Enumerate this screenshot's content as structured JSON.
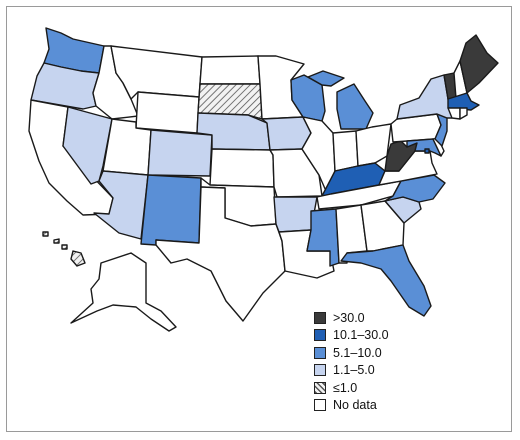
{
  "colors": {
    "ge30": "#3a3a3a",
    "c10_30": "#1f5fb4",
    "c5_10": "#5a8fd6",
    "c1_5": "#c6d4ef",
    "le1": "#e6e6e6",
    "nodata": "#ffffff",
    "border": "#1a1a1a"
  },
  "legend": [
    {
      "label": ">30.0",
      "class": "ge30"
    },
    {
      "label": "10.1–30.0",
      "class": "c10_30"
    },
    {
      "label": "5.1–10.0",
      "class": "c5_10"
    },
    {
      "label": "1.1–5.0",
      "class": "c1_5"
    },
    {
      "label": "≤1.0",
      "class": "le1",
      "hatched": true
    },
    {
      "label": "No data",
      "class": "nodata"
    }
  ],
  "states": {
    "WA": "c5_10",
    "OR": "c1_5",
    "CA": "nodata",
    "ID": "nodata",
    "NV": "c1_5",
    "MT": "nodata",
    "WY": "nodata",
    "UT": "nodata",
    "AZ": "c1_5",
    "CO": "c1_5",
    "NM": "c5_10",
    "ND": "nodata",
    "SD": "le1",
    "NE": "c1_5",
    "KS": "nodata",
    "OK": "nodata",
    "TX": "nodata",
    "MN": "nodata",
    "IA": "c1_5",
    "MO": "nodata",
    "AR": "c1_5",
    "LA": "nodata",
    "WI": "c5_10",
    "IL": "nodata",
    "MI": "c5_10",
    "IN": "nodata",
    "OH": "nodata",
    "KY": "c10_30",
    "TN": "nodata",
    "MS": "c5_10",
    "AL": "nodata",
    "GA": "nodata",
    "FL": "c5_10",
    "SC": "c1_5",
    "NC": "c5_10",
    "VA": "nodata",
    "WV": "ge30",
    "MD": "c5_10",
    "DE": "nodata",
    "NJ": "c5_10",
    "PA": "nodata",
    "NY": "c1_5",
    "CT": "nodata",
    "RI": "nodata",
    "MA": "c10_30",
    "VT": "ge30",
    "NH": "nodata",
    "ME": "ge30",
    "AK": "nodata",
    "HI": "le1",
    "DC": "c10_30"
  }
}
